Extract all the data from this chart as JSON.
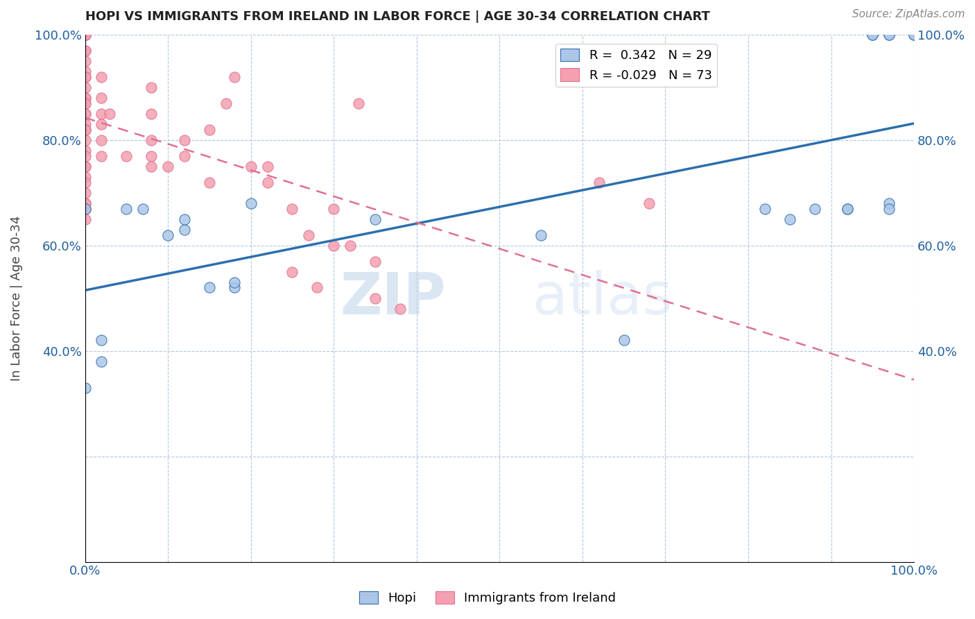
{
  "title": "HOPI VS IMMIGRANTS FROM IRELAND IN LABOR FORCE | AGE 30-34 CORRELATION CHART",
  "source": "Source: ZipAtlas.com",
  "ylabel": "In Labor Force | Age 30-34",
  "xlim": [
    0.0,
    1.0
  ],
  "ylim": [
    0.0,
    1.0
  ],
  "xticks": [
    0.0,
    0.1,
    0.2,
    0.3,
    0.4,
    0.5,
    0.6,
    0.7,
    0.8,
    0.9,
    1.0
  ],
  "xtick_labels": [
    "0.0%",
    "",
    "",
    "",
    "",
    "",
    "",
    "",
    "",
    "",
    "100.0%"
  ],
  "yticks": [
    0.0,
    0.2,
    0.4,
    0.6,
    0.8,
    1.0
  ],
  "ytick_labels": [
    "",
    "",
    "40.0%",
    "60.0%",
    "80.0%",
    "100.0%"
  ],
  "ytick_labels_right": [
    "",
    "",
    "40.0%",
    "60.0%",
    "80.0%",
    "100.0%"
  ],
  "legend_labels": [
    "Hopi",
    "Immigrants from Ireland"
  ],
  "hopi_R": 0.342,
  "hopi_N": 29,
  "ireland_R": -0.029,
  "ireland_N": 73,
  "hopi_color": "#adc6e8",
  "ireland_color": "#f4a0b0",
  "hopi_line_color": "#2c6fad",
  "ireland_line_color": "#e07090",
  "watermark_zip": "ZIP",
  "watermark_atlas": "atlas",
  "hopi_x": [
    0.0,
    0.0,
    0.02,
    0.02,
    0.05,
    0.07,
    0.1,
    0.12,
    0.12,
    0.15,
    0.18,
    0.18,
    0.2,
    0.35,
    0.55,
    0.82,
    0.85,
    0.88,
    0.92,
    0.92,
    0.95,
    0.95,
    0.97,
    0.97,
    0.97,
    0.97,
    1.0,
    1.0,
    0.65
  ],
  "hopi_y": [
    0.33,
    0.67,
    0.38,
    0.42,
    0.67,
    0.67,
    0.62,
    0.63,
    0.65,
    0.52,
    0.52,
    0.53,
    0.68,
    0.65,
    0.62,
    0.67,
    0.65,
    0.67,
    0.67,
    0.67,
    1.0,
    1.0,
    1.0,
    1.0,
    0.68,
    0.67,
    1.0,
    1.0,
    0.42
  ],
  "ireland_x": [
    0.0,
    0.0,
    0.0,
    0.0,
    0.0,
    0.0,
    0.0,
    0.0,
    0.0,
    0.0,
    0.0,
    0.0,
    0.0,
    0.0,
    0.0,
    0.0,
    0.0,
    0.0,
    0.0,
    0.0,
    0.0,
    0.0,
    0.0,
    0.0,
    0.0,
    0.0,
    0.0,
    0.0,
    0.0,
    0.0,
    0.0,
    0.0,
    0.0,
    0.0,
    0.0,
    0.0,
    0.0,
    0.02,
    0.02,
    0.02,
    0.02,
    0.02,
    0.02,
    0.03,
    0.05,
    0.08,
    0.08,
    0.08,
    0.08,
    0.08,
    0.1,
    0.12,
    0.12,
    0.15,
    0.15,
    0.17,
    0.18,
    0.2,
    0.22,
    0.22,
    0.25,
    0.27,
    0.3,
    0.32,
    0.35,
    0.25,
    0.28,
    0.3,
    0.35,
    0.38,
    0.33,
    0.62,
    0.68
  ],
  "ireland_y": [
    1.0,
    1.0,
    1.0,
    1.0,
    1.0,
    1.0,
    1.0,
    0.97,
    0.97,
    0.95,
    0.93,
    0.92,
    0.92,
    0.9,
    0.88,
    0.88,
    0.87,
    0.87,
    0.85,
    0.85,
    0.83,
    0.82,
    0.82,
    0.82,
    0.8,
    0.78,
    0.77,
    0.75,
    0.75,
    0.73,
    0.72,
    0.7,
    0.68,
    0.67,
    0.67,
    0.65,
    0.68,
    0.92,
    0.88,
    0.85,
    0.83,
    0.8,
    0.77,
    0.85,
    0.77,
    0.9,
    0.85,
    0.8,
    0.77,
    0.75,
    0.75,
    0.8,
    0.77,
    0.82,
    0.72,
    0.87,
    0.92,
    0.75,
    0.75,
    0.72,
    0.67,
    0.62,
    0.67,
    0.6,
    0.57,
    0.55,
    0.52,
    0.6,
    0.5,
    0.48,
    0.87,
    0.72,
    0.68
  ]
}
